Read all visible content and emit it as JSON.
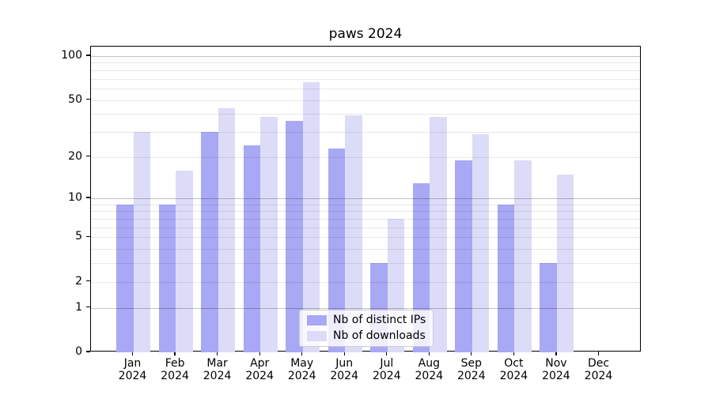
{
  "title": "paws 2024",
  "chart_data": {
    "type": "bar",
    "title": "paws 2024",
    "categories": [
      "Jan",
      "Feb",
      "Mar",
      "Apr",
      "May",
      "Jun",
      "Jul",
      "Aug",
      "Sep",
      "Oct",
      "Nov",
      "Dec"
    ],
    "x_year_label": "2024",
    "series": [
      {
        "name": "Nb of distinct IPs",
        "color": "#a8a8f5",
        "values": [
          9,
          9,
          30,
          24,
          36,
          23,
          3,
          13,
          19,
          9,
          3,
          0
        ]
      },
      {
        "name": "Nb of downloads",
        "color": "#dcdcf8",
        "values": [
          30,
          16,
          44,
          38,
          66,
          39,
          7,
          38,
          29,
          19,
          15,
          0
        ]
      }
    ],
    "yscale": "log1p",
    "ylim": [
      0,
      116
    ],
    "ytick_labels": [
      "0",
      "1",
      "2",
      "5",
      "10",
      "20",
      "50",
      "100"
    ],
    "ytick_values": [
      0,
      1,
      2,
      5,
      10,
      20,
      50,
      100
    ],
    "grid_major": [
      1,
      10,
      100
    ],
    "grid_minor": [
      2,
      3,
      4,
      5,
      6,
      7,
      8,
      9,
      20,
      30,
      40,
      50,
      60,
      70,
      80,
      90
    ],
    "grid": "on",
    "legend_position": "lower center"
  },
  "legend": {
    "items": [
      "Nb of distinct IPs",
      "Nb of downloads"
    ]
  }
}
